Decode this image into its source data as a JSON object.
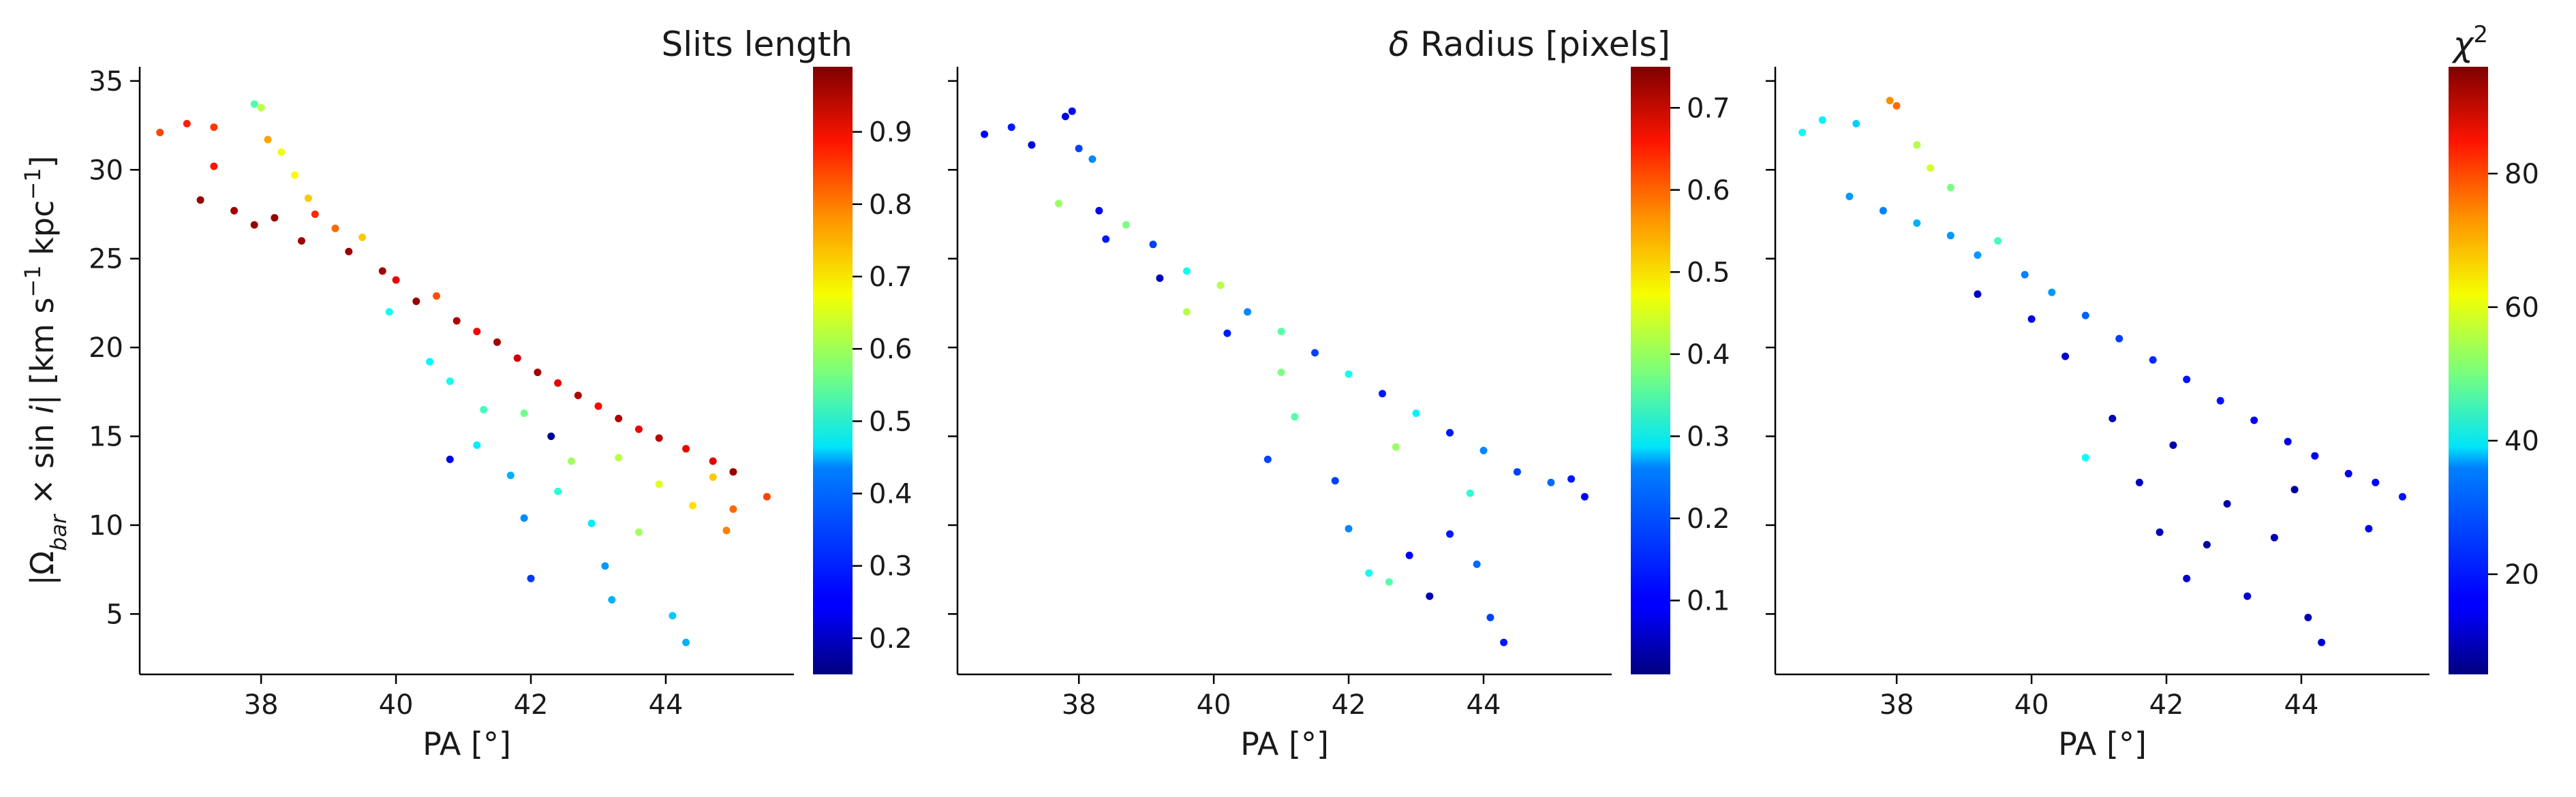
{
  "chart_data": [
    {
      "type": "scatter",
      "panel": "left",
      "xlabel": "PA [°]",
      "ylabel": "|Ω_bar × sin i|   [km s⁻¹ kpc⁻¹]",
      "ylabel_parts": {
        "open": "|Ω",
        "sub": "bar",
        "mid": " × sin ",
        "ital": "i",
        "close": "|   [km s",
        "sup1": "−1",
        "kpc": " kpc",
        "sup2": "−1",
        "end": "]"
      },
      "xlim": [
        36.2,
        45.9
      ],
      "ylim": [
        1.6,
        35.8
      ],
      "xticks": [
        38,
        40,
        42,
        44
      ],
      "yticks": [
        5,
        10,
        15,
        20,
        25,
        30,
        35
      ],
      "colorbar": {
        "title": "Slits length",
        "range": [
          0.15,
          0.99
        ],
        "ticks": [
          0.2,
          0.3,
          0.4,
          0.5,
          0.6,
          0.7,
          0.8,
          0.9
        ],
        "colormap": "jet"
      },
      "color_trend": "points along the upper edge of the band are high (0.9+, dark red); points scattered below the band are low to mid (0.3–0.7)",
      "points": [
        [
          36.5,
          32.1,
          0.83
        ],
        [
          36.9,
          32.6,
          0.86
        ],
        [
          37.3,
          32.4,
          0.84
        ],
        [
          37.1,
          28.3,
          0.97
        ],
        [
          37.3,
          30.2,
          0.87
        ],
        [
          37.9,
          33.7,
          0.53
        ],
        [
          38.0,
          33.5,
          0.62
        ],
        [
          38.1,
          31.7,
          0.75
        ],
        [
          38.3,
          31.0,
          0.66
        ],
        [
          37.6,
          27.7,
          0.96
        ],
        [
          37.9,
          26.9,
          0.97
        ],
        [
          38.2,
          27.3,
          0.97
        ],
        [
          38.6,
          26.0,
          0.96
        ],
        [
          38.8,
          27.5,
          0.85
        ],
        [
          39.1,
          26.7,
          0.8
        ],
        [
          39.3,
          25.4,
          0.97
        ],
        [
          39.5,
          26.2,
          0.72
        ],
        [
          39.8,
          24.3,
          0.96
        ],
        [
          40.0,
          23.8,
          0.9
        ],
        [
          40.3,
          22.6,
          0.97
        ],
        [
          40.6,
          22.9,
          0.82
        ],
        [
          40.9,
          21.5,
          0.95
        ],
        [
          41.2,
          20.9,
          0.89
        ],
        [
          41.5,
          20.3,
          0.96
        ],
        [
          41.8,
          19.4,
          0.92
        ],
        [
          42.1,
          18.6,
          0.96
        ],
        [
          42.4,
          18.0,
          0.9
        ],
        [
          42.7,
          17.3,
          0.95
        ],
        [
          43.0,
          16.7,
          0.88
        ],
        [
          43.3,
          16.0,
          0.95
        ],
        [
          43.6,
          15.4,
          0.9
        ],
        [
          43.9,
          14.9,
          0.94
        ],
        [
          44.3,
          14.3,
          0.9
        ],
        [
          44.7,
          13.6,
          0.91
        ],
        [
          45.0,
          13.0,
          0.97
        ],
        [
          45.5,
          11.6,
          0.83
        ],
        [
          45.0,
          10.9,
          0.8
        ],
        [
          44.9,
          9.7,
          0.78
        ],
        [
          40.8,
          18.1,
          0.48
        ],
        [
          40.5,
          19.2,
          0.46
        ],
        [
          41.3,
          16.5,
          0.52
        ],
        [
          41.2,
          14.5,
          0.45
        ],
        [
          41.7,
          12.8,
          0.4
        ],
        [
          41.9,
          10.4,
          0.37
        ],
        [
          42.0,
          7.0,
          0.3
        ],
        [
          42.4,
          11.9,
          0.5
        ],
        [
          42.6,
          13.6,
          0.6
        ],
        [
          42.3,
          15.0,
          0.17
        ],
        [
          42.9,
          10.1,
          0.45
        ],
        [
          43.1,
          7.7,
          0.38
        ],
        [
          43.2,
          5.8,
          0.4
        ],
        [
          43.6,
          9.6,
          0.6
        ],
        [
          43.9,
          12.3,
          0.65
        ],
        [
          44.1,
          4.9,
          0.42
        ],
        [
          44.3,
          3.4,
          0.4
        ],
        [
          44.4,
          11.1,
          0.7
        ],
        [
          44.7,
          12.7,
          0.72
        ],
        [
          43.3,
          13.8,
          0.62
        ],
        [
          40.8,
          13.7,
          0.23
        ],
        [
          41.9,
          16.3,
          0.56
        ],
        [
          39.9,
          22.0,
          0.48
        ],
        [
          38.7,
          28.4,
          0.72
        ],
        [
          38.5,
          29.7,
          0.68
        ]
      ]
    },
    {
      "type": "scatter",
      "panel": "middle",
      "xlabel": "PA [°]",
      "xlim": [
        36.2,
        45.9
      ],
      "ylim": [
        1.6,
        35.8
      ],
      "xticks": [
        38,
        40,
        42,
        44
      ],
      "yticks": [
        5,
        10,
        15,
        20,
        25,
        30,
        35
      ],
      "colorbar": {
        "title": "δ Radius [pixels]",
        "title_greek": "δ",
        "title_rest": " Radius [pixels]",
        "range": [
          0.01,
          0.75
        ],
        "ticks": [
          0.1,
          0.2,
          0.3,
          0.4,
          0.5,
          0.6,
          0.7
        ],
        "colormap": "jet"
      },
      "color_trend": "most points low (0.05–0.2, blue); a scattering of cyan/green points (0.3–0.45) within the band",
      "points": [
        [
          36.6,
          32.0,
          0.1
        ],
        [
          37.0,
          32.4,
          0.12
        ],
        [
          37.3,
          31.4,
          0.08
        ],
        [
          37.9,
          33.3,
          0.1
        ],
        [
          37.8,
          33.0,
          0.08
        ],
        [
          38.0,
          31.2,
          0.15
        ],
        [
          38.2,
          30.6,
          0.2
        ],
        [
          37.7,
          28.1,
          0.4
        ],
        [
          38.3,
          27.7,
          0.1
        ],
        [
          38.7,
          26.9,
          0.38
        ],
        [
          39.1,
          25.8,
          0.15
        ],
        [
          39.6,
          24.3,
          0.3
        ],
        [
          40.1,
          23.5,
          0.42
        ],
        [
          40.5,
          22.0,
          0.2
        ],
        [
          41.0,
          20.9,
          0.35
        ],
        [
          41.5,
          19.7,
          0.15
        ],
        [
          42.0,
          18.5,
          0.3
        ],
        [
          42.5,
          17.4,
          0.12
        ],
        [
          43.0,
          16.3,
          0.28
        ],
        [
          43.5,
          15.2,
          0.12
        ],
        [
          44.0,
          14.2,
          0.2
        ],
        [
          44.5,
          13.0,
          0.15
        ],
        [
          45.0,
          12.4,
          0.18
        ],
        [
          45.3,
          12.6,
          0.12
        ],
        [
          45.5,
          11.6,
          0.1
        ],
        [
          40.8,
          13.7,
          0.15
        ],
        [
          41.2,
          16.1,
          0.35
        ],
        [
          41.8,
          12.5,
          0.15
        ],
        [
          42.0,
          9.8,
          0.2
        ],
        [
          42.3,
          7.3,
          0.3
        ],
        [
          42.6,
          6.8,
          0.35
        ],
        [
          42.9,
          8.3,
          0.1
        ],
        [
          43.2,
          6.0,
          0.05
        ],
        [
          43.5,
          9.5,
          0.12
        ],
        [
          43.9,
          7.8,
          0.18
        ],
        [
          44.1,
          4.8,
          0.15
        ],
        [
          44.3,
          3.4,
          0.12
        ],
        [
          42.7,
          14.4,
          0.4
        ],
        [
          43.8,
          11.8,
          0.32
        ],
        [
          41.0,
          18.6,
          0.38
        ],
        [
          40.2,
          20.8,
          0.12
        ],
        [
          39.2,
          23.9,
          0.05
        ],
        [
          38.4,
          26.1,
          0.12
        ],
        [
          39.6,
          22.0,
          0.42
        ]
      ]
    },
    {
      "type": "scatter",
      "panel": "right",
      "xlabel": "PA [°]",
      "xlim": [
        36.2,
        45.9
      ],
      "ylim": [
        1.6,
        35.8
      ],
      "xticks": [
        38,
        40,
        42,
        44
      ],
      "yticks": [
        5,
        10,
        15,
        20,
        25,
        30,
        35
      ],
      "colorbar": {
        "title": "χ²",
        "title_greek": "χ",
        "title_sup": "2",
        "range": [
          5,
          96
        ],
        "ticks": [
          20,
          40,
          60,
          80
        ],
        "colormap": "jet"
      },
      "color_trend": "low χ² (10–25, blue) over most of the band; dark blue (≈7–15) for points below the band; rising to cyan/green (40–60) and orange (≈75) at top-left",
      "points": [
        [
          36.6,
          32.1,
          40
        ],
        [
          36.9,
          32.8,
          38
        ],
        [
          37.4,
          32.6,
          35
        ],
        [
          37.9,
          33.9,
          72
        ],
        [
          38.0,
          33.6,
          75
        ],
        [
          38.3,
          31.4,
          55
        ],
        [
          38.5,
          30.1,
          58
        ],
        [
          38.8,
          29.0,
          50
        ],
        [
          37.3,
          28.5,
          30
        ],
        [
          37.8,
          27.7,
          28
        ],
        [
          38.3,
          27.0,
          32
        ],
        [
          38.8,
          26.3,
          30
        ],
        [
          39.2,
          25.2,
          30
        ],
        [
          39.5,
          26.0,
          45
        ],
        [
          39.9,
          24.1,
          28
        ],
        [
          40.3,
          23.1,
          30
        ],
        [
          40.8,
          21.8,
          25
        ],
        [
          41.3,
          20.5,
          22
        ],
        [
          41.8,
          19.3,
          20
        ],
        [
          42.3,
          18.2,
          18
        ],
        [
          42.8,
          17.0,
          18
        ],
        [
          43.3,
          15.9,
          16
        ],
        [
          43.8,
          14.7,
          14
        ],
        [
          44.2,
          13.9,
          15
        ],
        [
          44.7,
          12.9,
          14
        ],
        [
          45.1,
          12.4,
          16
        ],
        [
          45.5,
          11.6,
          18
        ],
        [
          45.0,
          9.8,
          15
        ],
        [
          40.5,
          19.5,
          12
        ],
        [
          40.8,
          13.8,
          40
        ],
        [
          41.2,
          16.0,
          10
        ],
        [
          41.6,
          12.4,
          10
        ],
        [
          41.9,
          9.6,
          10
        ],
        [
          42.3,
          7.0,
          12
        ],
        [
          42.6,
          8.9,
          8
        ],
        [
          42.9,
          11.2,
          9
        ],
        [
          43.2,
          6.0,
          12
        ],
        [
          43.6,
          9.3,
          10
        ],
        [
          44.1,
          4.8,
          10
        ],
        [
          44.3,
          3.4,
          12
        ],
        [
          43.9,
          12.0,
          8
        ],
        [
          42.1,
          14.5,
          9
        ],
        [
          39.2,
          23.0,
          12
        ],
        [
          40.0,
          21.6,
          14
        ]
      ]
    }
  ]
}
